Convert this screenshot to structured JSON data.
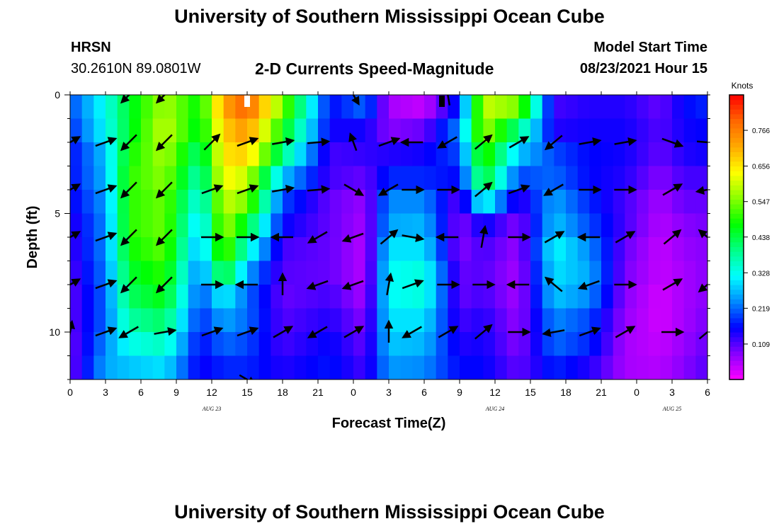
{
  "header": {
    "title": "University of Southern Mississippi Ocean Cube",
    "station": "HRSN",
    "coords": "30.2610N  89.0801W",
    "plot_title": "2-D Currents Speed-Magnitude",
    "model_label": "Model Start Time",
    "model_time": "08/23/2021 Hour 15"
  },
  "footer": {
    "title": "University of Southern Mississippi Ocean Cube"
  },
  "chart_data": {
    "type": "heatmap",
    "title": "2-D Currents Speed-Magnitude",
    "xlabel": "Forecast Time(Z)",
    "ylabel": "Depth (ft)",
    "x_range_hours": [
      0,
      54
    ],
    "y_range_ft": [
      0,
      12
    ],
    "x_tick_labels": [
      "0",
      "3",
      "6",
      "9",
      "12",
      "15",
      "18",
      "21",
      "0",
      "3",
      "6",
      "9",
      "12",
      "15",
      "18",
      "21",
      "0",
      "3",
      "6"
    ],
    "y_ticks": [
      0,
      5,
      10
    ],
    "y_tick_labels": [
      "0",
      "5",
      "10"
    ],
    "date_labels": [
      {
        "label": "AUG 23",
        "hour": 12
      },
      {
        "label": "AUG 24",
        "hour": 36
      },
      {
        "label": "AUG 25",
        "hour": 51
      }
    ],
    "colorbar": {
      "unit": "Knots",
      "ticks": [
        0.109,
        0.219,
        0.328,
        0.438,
        0.547,
        0.656,
        0.766
      ],
      "range": [
        0,
        0.875
      ],
      "colors": [
        "#ff00ff",
        "#8800ff",
        "#0000ff",
        "#0088ff",
        "#00ffff",
        "#00ff88",
        "#00ff00",
        "#88ff00",
        "#ffff00",
        "#ffaa00",
        "#ff6600",
        "#ff0000"
      ]
    },
    "depth_levels_ft": [
      0,
      1,
      2,
      3,
      4,
      5,
      6,
      7,
      8,
      9,
      10,
      11
    ],
    "column_hours": [
      0,
      3,
      5,
      8,
      11,
      13,
      15,
      18,
      22,
      25,
      27,
      30,
      33,
      35,
      38,
      41,
      44,
      47,
      50,
      52,
      54
    ],
    "speed_profiles_knots": [
      [
        0.2,
        0.18,
        0.16,
        0.16,
        0.15,
        0.13,
        0.12,
        0.11,
        0.1,
        0.1,
        0.09,
        0.09
      ],
      [
        0.33,
        0.32,
        0.28,
        0.27,
        0.25,
        0.24,
        0.24,
        0.23,
        0.22,
        0.22,
        0.24,
        0.26
      ],
      [
        0.45,
        0.45,
        0.48,
        0.5,
        0.5,
        0.5,
        0.48,
        0.45,
        0.42,
        0.38,
        0.33,
        0.28
      ],
      [
        0.58,
        0.6,
        0.58,
        0.56,
        0.54,
        0.54,
        0.53,
        0.5,
        0.47,
        0.42,
        0.36,
        0.3
      ],
      [
        0.47,
        0.45,
        0.4,
        0.36,
        0.32,
        0.28,
        0.25,
        0.22,
        0.2,
        0.18,
        0.16,
        0.15
      ],
      [
        0.72,
        0.68,
        0.66,
        0.64,
        0.6,
        0.58,
        0.55,
        0.47,
        0.32,
        0.26,
        0.22,
        0.18
      ],
      [
        0.8,
        0.74,
        0.68,
        0.6,
        0.55,
        0.45,
        0.35,
        0.26,
        0.22,
        0.22,
        0.2,
        0.18
      ],
      [
        0.55,
        0.48,
        0.4,
        0.28,
        0.2,
        0.16,
        0.12,
        0.11,
        0.1,
        0.11,
        0.12,
        0.14
      ],
      [
        0.16,
        0.15,
        0.12,
        0.12,
        0.1,
        0.1,
        0.1,
        0.1,
        0.12,
        0.14,
        0.16,
        0.17
      ],
      [
        0.22,
        0.15,
        0.13,
        0.1,
        0.07,
        0.06,
        0.05,
        0.05,
        0.06,
        0.08,
        0.1,
        0.12
      ],
      [
        0.06,
        0.08,
        0.14,
        0.18,
        0.24,
        0.26,
        0.3,
        0.32,
        0.32,
        0.3,
        0.28,
        0.25
      ],
      [
        0.04,
        0.1,
        0.15,
        0.18,
        0.24,
        0.27,
        0.3,
        0.34,
        0.34,
        0.3,
        0.27,
        0.24
      ],
      [
        0.18,
        0.24,
        0.2,
        0.16,
        0.1,
        0.08,
        0.08,
        0.1,
        0.1,
        0.12,
        0.14,
        0.16
      ],
      [
        0.6,
        0.58,
        0.52,
        0.47,
        0.34,
        0.16,
        0.12,
        0.11,
        0.12,
        0.14,
        0.15,
        0.16
      ],
      [
        0.55,
        0.4,
        0.28,
        0.2,
        0.12,
        0.08,
        0.07,
        0.06,
        0.06,
        0.07,
        0.08,
        0.1
      ],
      [
        0.12,
        0.14,
        0.2,
        0.22,
        0.26,
        0.28,
        0.32,
        0.3,
        0.28,
        0.24,
        0.22,
        0.18
      ],
      [
        0.14,
        0.15,
        0.16,
        0.16,
        0.18,
        0.2,
        0.24,
        0.26,
        0.24,
        0.2,
        0.18,
        0.14
      ],
      [
        0.14,
        0.15,
        0.15,
        0.14,
        0.12,
        0.12,
        0.1,
        0.09,
        0.08,
        0.07,
        0.06,
        0.06
      ],
      [
        0.1,
        0.11,
        0.1,
        0.08,
        0.06,
        0.05,
        0.04,
        0.04,
        0.03,
        0.03,
        0.04,
        0.05
      ],
      [
        0.16,
        0.15,
        0.14,
        0.12,
        0.1,
        0.08,
        0.07,
        0.06,
        0.06,
        0.06,
        0.07,
        0.08
      ],
      [
        0.18,
        0.16,
        0.15,
        0.12,
        0.1,
        0.09,
        0.08,
        0.08,
        0.08,
        0.09,
        0.1,
        0.11
      ]
    ],
    "vector_rows_ft": [
      0,
      2,
      4,
      6,
      8,
      10,
      12
    ],
    "vector_columns_hours": [
      0,
      3,
      5,
      8,
      12,
      15,
      18,
      21,
      24,
      27,
      29,
      32,
      35,
      38,
      41,
      44,
      47,
      51,
      54
    ],
    "vectors": [
      [
        [
          0,
          0
        ],
        [
          0,
          0
        ],
        [
          225,
          0.6
        ],
        [
          225,
          0.6
        ],
        [
          0,
          0
        ],
        [
          0,
          0
        ],
        [
          0,
          0
        ],
        [
          0,
          0
        ],
        [
          300,
          0.6
        ],
        [
          0,
          0
        ],
        [
          0,
          0
        ],
        [
          100,
          0.6
        ],
        [
          0,
          0
        ],
        [
          0,
          0
        ],
        [
          0,
          0
        ],
        [
          0,
          0
        ],
        [
          0,
          0
        ],
        [
          0,
          0
        ],
        [
          0,
          0
        ]
      ],
      [
        [
          30,
          0.6
        ],
        [
          20,
          0.6
        ],
        [
          225,
          0.6
        ],
        [
          225,
          0.6
        ],
        [
          45,
          0.6
        ],
        [
          20,
          0.6
        ],
        [
          10,
          0.6
        ],
        [
          5,
          0.6
        ],
        [
          110,
          0.5
        ],
        [
          20,
          0.6
        ],
        [
          180,
          0.6
        ],
        [
          210,
          0.6
        ],
        [
          40,
          0.6
        ],
        [
          30,
          0.6
        ],
        [
          220,
          0.6
        ],
        [
          10,
          0.6
        ],
        [
          10,
          0.6
        ],
        [
          340,
          0.6
        ],
        [
          355,
          0.6
        ]
      ],
      [
        [
          30,
          0.6
        ],
        [
          20,
          0.6
        ],
        [
          225,
          0.6
        ],
        [
          225,
          0.6
        ],
        [
          20,
          0.6
        ],
        [
          20,
          0.6
        ],
        [
          10,
          0.6
        ],
        [
          5,
          0.6
        ],
        [
          330,
          0.6
        ],
        [
          210,
          0.6
        ],
        [
          0,
          0.6
        ],
        [
          0,
          0.6
        ],
        [
          40,
          0.6
        ],
        [
          20,
          0.6
        ],
        [
          210,
          0.6
        ],
        [
          0,
          0.6
        ],
        [
          0,
          0.6
        ],
        [
          30,
          0.6
        ],
        [
          190,
          0.6
        ]
      ],
      [
        [
          30,
          0.6
        ],
        [
          20,
          0.6
        ],
        [
          225,
          0.6
        ],
        [
          225,
          0.6
        ],
        [
          0,
          0.6
        ],
        [
          0,
          0.6
        ],
        [
          180,
          0.6
        ],
        [
          210,
          0.6
        ],
        [
          200,
          0.6
        ],
        [
          40,
          0.6
        ],
        [
          350,
          0.6
        ],
        [
          180,
          0.6
        ],
        [
          80,
          0.6
        ],
        [
          0,
          0.6
        ],
        [
          30,
          0.6
        ],
        [
          180,
          0.6
        ],
        [
          30,
          0.6
        ],
        [
          40,
          0.6
        ],
        [
          140,
          0.6
        ]
      ],
      [
        [
          30,
          0.6
        ],
        [
          20,
          0.6
        ],
        [
          225,
          0.6
        ],
        [
          225,
          0.6
        ],
        [
          0,
          0.6
        ],
        [
          180,
          0.6
        ],
        [
          90,
          0.6
        ],
        [
          200,
          0.6
        ],
        [
          200,
          0.6
        ],
        [
          80,
          0.6
        ],
        [
          20,
          0.6
        ],
        [
          0,
          0.6
        ],
        [
          0,
          0.6
        ],
        [
          180,
          0.6
        ],
        [
          140,
          0.6
        ],
        [
          200,
          0.6
        ],
        [
          0,
          0.6
        ],
        [
          30,
          0.6
        ],
        [
          220,
          0.6
        ]
      ],
      [
        [
          80,
          0.6
        ],
        [
          20,
          0.6
        ],
        [
          210,
          0.6
        ],
        [
          10,
          0.6
        ],
        [
          20,
          0.6
        ],
        [
          20,
          0.6
        ],
        [
          30,
          0.6
        ],
        [
          210,
          0.6
        ],
        [
          30,
          0.6
        ],
        [
          90,
          0.6
        ],
        [
          210,
          0.6
        ],
        [
          30,
          0.6
        ],
        [
          40,
          0.6
        ],
        [
          0,
          0.6
        ],
        [
          190,
          0.6
        ],
        [
          20,
          0.6
        ],
        [
          30,
          0.6
        ],
        [
          0,
          0.6
        ],
        [
          40,
          0.6
        ]
      ],
      [
        [
          0,
          0
        ],
        [
          0,
          0
        ],
        [
          0,
          0
        ],
        [
          0,
          0
        ],
        [
          0,
          0
        ],
        [
          330,
          0.5
        ],
        [
          0,
          0
        ],
        [
          0,
          0
        ],
        [
          0,
          0
        ],
        [
          0,
          0
        ],
        [
          0,
          0
        ],
        [
          0,
          0
        ],
        [
          0,
          0
        ],
        [
          0,
          0
        ],
        [
          0,
          0
        ],
        [
          0,
          0
        ],
        [
          0,
          0
        ],
        [
          0,
          0
        ],
        [
          0,
          0
        ]
      ]
    ],
    "markers": [
      {
        "hour": 15.0,
        "color": "#ffffff"
      },
      {
        "hour": 31.5,
        "color": "#000000"
      }
    ]
  }
}
